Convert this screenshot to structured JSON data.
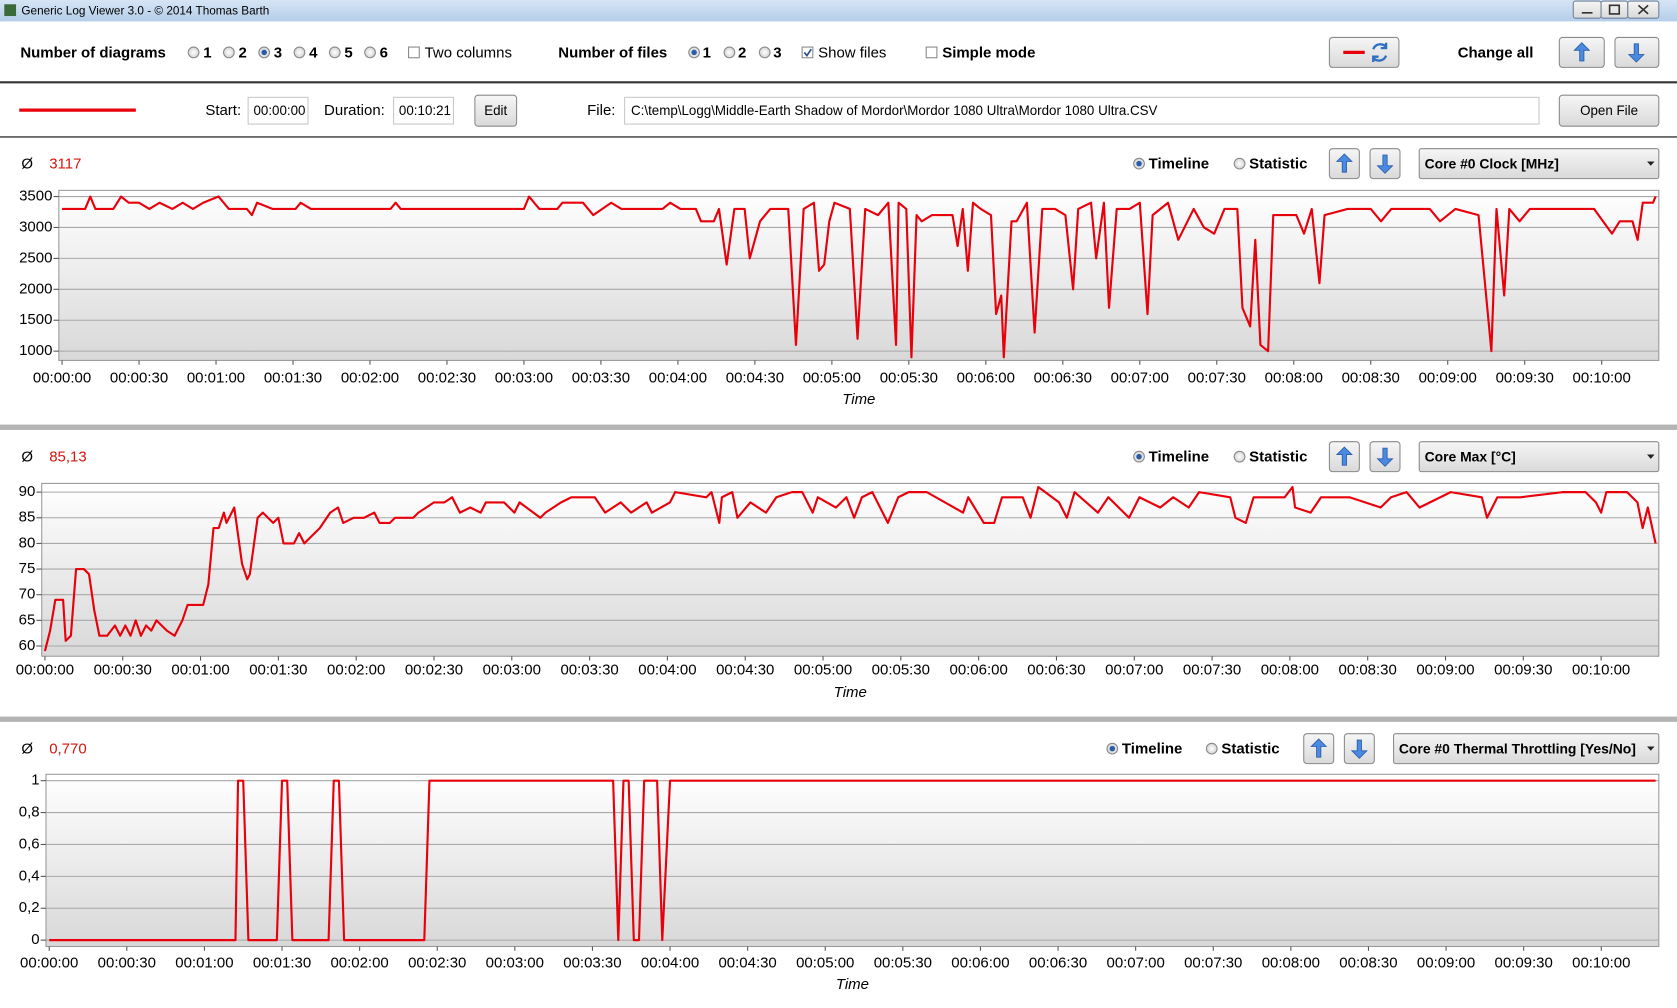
{
  "window": {
    "title": "Generic Log Viewer 3.0 - © 2014 Thomas Barth"
  },
  "toolbar": {
    "diagrams_label": "Number of diagrams",
    "diagram_options": [
      "1",
      "2",
      "3",
      "4",
      "5",
      "6"
    ],
    "two_columns": "Two columns",
    "files_label": "Number of files",
    "file_options": [
      "1",
      "2",
      "3"
    ],
    "show_files": "Show files",
    "simple_mode": "Simple mode",
    "change_all": "Change all"
  },
  "file_row": {
    "start_label": "Start:",
    "start": "00:00:00",
    "duration_label": "Duration:",
    "duration": "00:10:21",
    "edit": "Edit",
    "file_label": "File:",
    "file": "C:\\temp\\Logg\\Middle-Earth Shadow of Mordor\\Mordor 1080 Ultra\\Mordor 1080 Ultra.CSV",
    "open_file": "Open File"
  },
  "chart_data": [
    {
      "type": "line",
      "average_symbol": "Ø",
      "average": "3117",
      "view_options": [
        "Timeline",
        "Statistic"
      ],
      "sensor": "Core #0 Clock [MHz]",
      "x_label": "Time",
      "color": "#e8000b",
      "grid": true,
      "x": [
        0,
        9,
        11,
        13,
        20,
        23,
        26,
        30,
        34,
        38,
        43,
        47,
        51,
        55,
        61,
        65,
        72,
        74,
        76,
        82,
        91,
        93,
        97,
        128,
        130,
        132,
        180,
        182,
        186,
        193,
        195,
        203,
        207,
        214,
        218,
        234,
        237,
        241,
        247,
        249,
        254,
        256,
        259,
        262,
        266,
        268,
        272,
        276,
        283,
        286,
        289,
        293,
        295,
        297,
        299,
        301,
        307,
        310,
        313,
        318,
        322,
        325,
        326,
        329,
        331,
        333,
        335,
        339,
        347,
        349,
        351,
        353,
        355,
        358,
        362,
        364,
        366,
        367,
        370,
        372,
        376,
        379,
        382,
        387,
        391,
        394,
        396,
        401,
        403,
        406,
        408,
        411,
        416,
        420,
        423,
        425,
        431,
        435,
        441,
        445,
        449,
        453,
        458,
        460,
        463,
        465,
        467,
        470,
        472,
        481,
        484,
        487,
        490,
        492,
        501,
        510,
        514,
        518,
        527,
        533,
        537,
        543,
        552,
        557,
        559,
        562,
        564,
        568,
        572,
        579,
        585,
        591,
        597,
        604,
        607,
        612,
        614,
        616,
        620,
        621
      ],
      "values": [
        3300,
        3300,
        3500,
        3300,
        3300,
        3500,
        3400,
        3400,
        3300,
        3400,
        3300,
        3400,
        3300,
        3400,
        3500,
        3300,
        3300,
        3200,
        3400,
        3300,
        3300,
        3400,
        3300,
        3300,
        3400,
        3300,
        3300,
        3500,
        3300,
        3300,
        3400,
        3400,
        3200,
        3400,
        3300,
        3300,
        3400,
        3300,
        3300,
        3100,
        3100,
        3300,
        2400,
        3300,
        3300,
        2500,
        3100,
        3300,
        3300,
        1100,
        3300,
        3400,
        2300,
        2400,
        3100,
        3400,
        3300,
        1200,
        3300,
        3200,
        3400,
        1100,
        3400,
        3300,
        900,
        3200,
        3100,
        3200,
        3200,
        2700,
        3300,
        2300,
        3400,
        3300,
        3200,
        1600,
        1900,
        900,
        3100,
        3100,
        3400,
        1300,
        3300,
        3300,
        3200,
        2000,
        3300,
        3400,
        2500,
        3400,
        1700,
        3300,
        3300,
        3400,
        1600,
        3200,
        3400,
        2800,
        3300,
        3000,
        2900,
        3300,
        3300,
        1700,
        1400,
        2800,
        1100,
        1000,
        3200,
        3200,
        2900,
        3300,
        2100,
        3200,
        3300,
        3300,
        3100,
        3300,
        3300,
        3300,
        3100,
        3300,
        3200,
        1000,
        3300,
        1900,
        3300,
        3100,
        3300,
        3300,
        3300,
        3300,
        3300,
        2900,
        3100,
        3100,
        2800,
        3400,
        3400,
        3500
      ],
      "xlim": [
        0,
        621
      ],
      "ylim": [
        850,
        3600
      ],
      "yticks": [
        1000,
        1500,
        2000,
        2500,
        3000,
        3500
      ],
      "xticks": [
        {
          "value": 0,
          "label": "00:00:00"
        },
        {
          "value": 30,
          "label": "00:00:30"
        },
        {
          "value": 60,
          "label": "00:01:00"
        },
        {
          "value": 90,
          "label": "00:01:30"
        },
        {
          "value": 120,
          "label": "00:02:00"
        },
        {
          "value": 150,
          "label": "00:02:30"
        },
        {
          "value": 180,
          "label": "00:03:00"
        },
        {
          "value": 210,
          "label": "00:03:30"
        },
        {
          "value": 240,
          "label": "00:04:00"
        },
        {
          "value": 270,
          "label": "00:04:30"
        },
        {
          "value": 300,
          "label": "00:05:00"
        },
        {
          "value": 330,
          "label": "00:05:30"
        },
        {
          "value": 360,
          "label": "00:06:00"
        },
        {
          "value": 390,
          "label": "00:06:30"
        },
        {
          "value": 420,
          "label": "00:07:00"
        },
        {
          "value": 450,
          "label": "00:07:30"
        },
        {
          "value": 480,
          "label": "00:08:00"
        },
        {
          "value": 510,
          "label": "00:08:30"
        },
        {
          "value": 540,
          "label": "00:09:00"
        },
        {
          "value": 570,
          "label": "00:09:30"
        },
        {
          "value": 600,
          "label": "00:10:00"
        }
      ]
    },
    {
      "type": "line",
      "average_symbol": "Ø",
      "average": "85,13",
      "view_options": [
        "Timeline",
        "Statistic"
      ],
      "sensor": "Core Max [°C]",
      "x_label": "Time",
      "color": "#e8000b",
      "grid": true,
      "x": [
        0,
        2,
        4,
        7,
        8,
        10,
        12,
        15,
        17,
        19,
        21,
        24,
        27,
        29,
        31,
        33,
        35,
        37,
        39,
        41,
        43,
        47,
        50,
        53,
        55,
        58,
        61,
        63,
        65,
        67,
        69,
        70,
        73,
        76,
        78,
        79,
        82,
        84,
        88,
        90,
        92,
        96,
        98,
        100,
        104,
        106,
        110,
        113,
        115,
        119,
        123,
        127,
        129,
        133,
        135,
        142,
        144,
        150,
        154,
        157,
        160,
        164,
        168,
        170,
        177,
        181,
        183,
        191,
        193,
        199,
        203,
        212,
        216,
        222,
        226,
        232,
        234,
        241,
        243,
        255,
        257,
        260,
        261,
        265,
        267,
        272,
        278,
        282,
        288,
        292,
        296,
        298,
        305,
        309,
        312,
        315,
        319,
        325,
        329,
        333,
        340,
        354,
        356,
        362,
        366,
        369,
        377,
        380,
        383,
        391,
        394,
        397,
        406,
        410,
        418,
        422,
        430,
        435,
        441,
        445,
        457,
        459,
        463,
        466,
        478,
        481,
        482,
        488,
        492,
        503,
        515,
        519,
        525,
        530,
        542,
        554,
        556,
        560,
        569,
        585,
        594,
        598,
        600,
        602,
        610,
        614,
        616,
        618,
        621
      ],
      "values": [
        59,
        63,
        69,
        69,
        61,
        62,
        75,
        75,
        74,
        67,
        62,
        62,
        64,
        62,
        64,
        62,
        65,
        62,
        64,
        63,
        65,
        63,
        62,
        65,
        68,
        68,
        68,
        72,
        83,
        83,
        86,
        84,
        87,
        76,
        73,
        74,
        85,
        86,
        84,
        85,
        80,
        80,
        82,
        80,
        82,
        83,
        86,
        87,
        84,
        85,
        85,
        86,
        84,
        84,
        85,
        85,
        86,
        88,
        88,
        89,
        86,
        87,
        86,
        88,
        88,
        86,
        88,
        85,
        86,
        88,
        89,
        89,
        86,
        88,
        86,
        88,
        86,
        88,
        90,
        89,
        90,
        84,
        89,
        90,
        85,
        88,
        86,
        89,
        90,
        90,
        86,
        89,
        87,
        89,
        85,
        89,
        90,
        84,
        89,
        90,
        90,
        86,
        89,
        84,
        84,
        89,
        89,
        85,
        91,
        88,
        85,
        90,
        86,
        89,
        85,
        89,
        87,
        89,
        87,
        90,
        89,
        85,
        84,
        89,
        89,
        91,
        87,
        86,
        89,
        89,
        87,
        89,
        90,
        87,
        90,
        89,
        85,
        89,
        89,
        90,
        90,
        88,
        86,
        90,
        90,
        88,
        83,
        87,
        80
      ],
      "xlim": [
        0,
        621
      ],
      "ylim": [
        58,
        91.7
      ],
      "yticks": [
        60,
        65,
        70,
        75,
        80,
        85,
        90
      ],
      "xticks": [
        {
          "value": 0,
          "label": "00:00:00"
        },
        {
          "value": 30,
          "label": "00:00:30"
        },
        {
          "value": 60,
          "label": "00:01:00"
        },
        {
          "value": 90,
          "label": "00:01:30"
        },
        {
          "value": 120,
          "label": "00:02:00"
        },
        {
          "value": 150,
          "label": "00:02:30"
        },
        {
          "value": 180,
          "label": "00:03:00"
        },
        {
          "value": 210,
          "label": "00:03:30"
        },
        {
          "value": 240,
          "label": "00:04:00"
        },
        {
          "value": 270,
          "label": "00:04:30"
        },
        {
          "value": 300,
          "label": "00:05:00"
        },
        {
          "value": 330,
          "label": "00:05:30"
        },
        {
          "value": 360,
          "label": "00:06:00"
        },
        {
          "value": 390,
          "label": "00:06:30"
        },
        {
          "value": 420,
          "label": "00:07:00"
        },
        {
          "value": 450,
          "label": "00:07:30"
        },
        {
          "value": 480,
          "label": "00:08:00"
        },
        {
          "value": 510,
          "label": "00:08:30"
        },
        {
          "value": 540,
          "label": "00:09:00"
        },
        {
          "value": 570,
          "label": "00:09:30"
        },
        {
          "value": 600,
          "label": "00:10:00"
        }
      ]
    },
    {
      "type": "line",
      "average_symbol": "Ø",
      "average": "0,770",
      "view_options": [
        "Timeline",
        "Statistic"
      ],
      "sensor": "Core #0 Thermal Throttling [Yes/No]",
      "x_label": "Time",
      "color": "#e8000b",
      "grid": true,
      "x": [
        0,
        72,
        73,
        75,
        77,
        88,
        90,
        92,
        94,
        108,
        110,
        112,
        114,
        145,
        147,
        218,
        220,
        222,
        224,
        226,
        228,
        230,
        235,
        237,
        240,
        621
      ],
      "values": [
        0,
        0,
        1,
        1,
        0,
        0,
        1,
        1,
        0,
        0,
        1,
        1,
        0,
        0,
        1,
        1,
        0,
        1,
        1,
        0,
        0,
        1,
        1,
        0,
        1,
        1
      ],
      "xlim": [
        0,
        621
      ],
      "ylim": [
        -0.04,
        1.04
      ],
      "yticks": [
        0,
        {
          "value": 0.2,
          "label": "0,2"
        },
        {
          "value": 0.4,
          "label": "0,4"
        },
        {
          "value": 0.6,
          "label": "0,6"
        },
        {
          "value": 0.8,
          "label": "0,8"
        },
        1
      ],
      "xticks": [
        {
          "value": 0,
          "label": "00:00:00"
        },
        {
          "value": 30,
          "label": "00:00:30"
        },
        {
          "value": 60,
          "label": "00:01:00"
        },
        {
          "value": 90,
          "label": "00:01:30"
        },
        {
          "value": 120,
          "label": "00:02:00"
        },
        {
          "value": 150,
          "label": "00:02:30"
        },
        {
          "value": 180,
          "label": "00:03:00"
        },
        {
          "value": 210,
          "label": "00:03:30"
        },
        {
          "value": 240,
          "label": "00:04:00"
        },
        {
          "value": 270,
          "label": "00:04:30"
        },
        {
          "value": 300,
          "label": "00:05:00"
        },
        {
          "value": 330,
          "label": "00:05:30"
        },
        {
          "value": 360,
          "label": "00:06:00"
        },
        {
          "value": 390,
          "label": "00:06:30"
        },
        {
          "value": 420,
          "label": "00:07:00"
        },
        {
          "value": 450,
          "label": "00:07:30"
        },
        {
          "value": 480,
          "label": "00:08:00"
        },
        {
          "value": 510,
          "label": "00:08:30"
        },
        {
          "value": 540,
          "label": "00:09:00"
        },
        {
          "value": 570,
          "label": "00:09:30"
        },
        {
          "value": 600,
          "label": "00:10:00"
        }
      ]
    }
  ]
}
